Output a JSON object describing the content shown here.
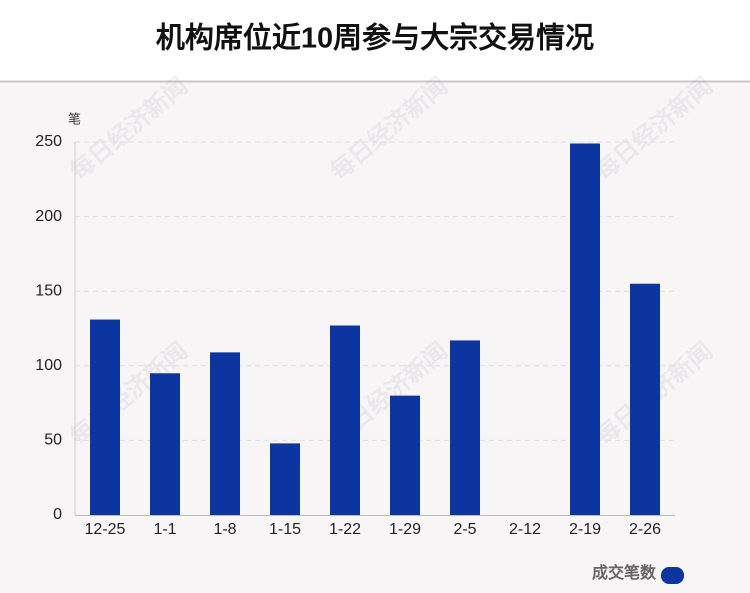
{
  "chart_data": {
    "type": "bar",
    "title": "机构席位近10周参与大宗交易情况",
    "y_label": "笔",
    "watermark": "每日经济新闻",
    "categories": [
      "12-25",
      "1-1",
      "1-8",
      "1-15",
      "1-22",
      "1-29",
      "2-5",
      "2-12",
      "2-19",
      "2-26"
    ],
    "series": [
      {
        "name": "成交笔数",
        "color": "#0d35a0",
        "values": [
          131,
          95,
          109,
          48,
          127,
          80,
          117,
          0,
          249,
          155
        ]
      }
    ],
    "ylim": [
      0,
      250
    ],
    "yticks": [
      0,
      50,
      100,
      150,
      200,
      250
    ],
    "grid": true,
    "legend": "bottom-right"
  }
}
